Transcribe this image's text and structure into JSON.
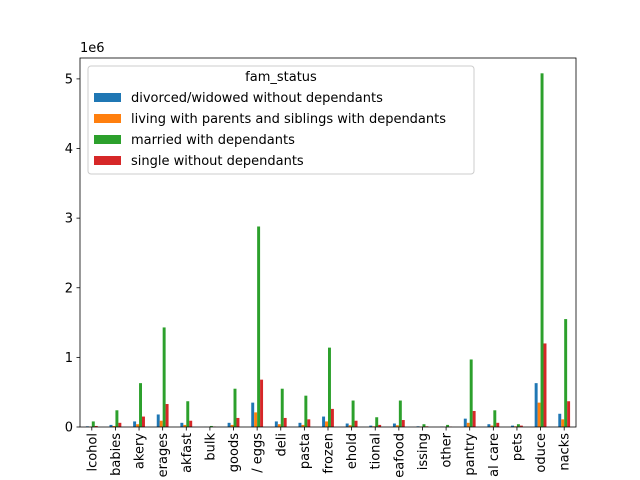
{
  "chart_data": {
    "type": "bar",
    "scale_label": "1e6",
    "ylim": [
      0,
      5300000
    ],
    "yticks": [
      0,
      1,
      2,
      3,
      4,
      5
    ],
    "categories": [
      "alcohol",
      "babies",
      "bakery",
      "beverages",
      "breakfast",
      "bulk",
      "canned goods",
      "dairy eggs",
      "deli",
      "dry goods pasta",
      "frozen",
      "household",
      "international",
      "meat seafood",
      "missing",
      "other",
      "pantry",
      "personal care",
      "pets",
      "produce",
      "snacks"
    ],
    "category_labels": [
      "lcohol",
      "babies",
      "akery",
      "erages",
      "akfast",
      "bulk",
      "goods",
      "/ eggs",
      "deli",
      "pasta",
      "frozen",
      "ehold",
      "tional",
      "eafood",
      "issing",
      "other",
      "pantry",
      "al care",
      "pets",
      "oduce",
      "nacks"
    ],
    "legend": {
      "title": "fam_status",
      "placement": "upper-left"
    },
    "series": [
      {
        "name": "divorced/widowed without dependants",
        "color": "#1f77b4",
        "values": [
          10000,
          30000,
          80000,
          180000,
          60000,
          2000,
          60000,
          350000,
          80000,
          60000,
          150000,
          50000,
          20000,
          50000,
          10000,
          5000,
          120000,
          40000,
          20000,
          630000,
          190000
        ]
      },
      {
        "name": "living with parents and siblings with dependants",
        "color": "#ff7f0e",
        "values": [
          5000,
          15000,
          40000,
          90000,
          30000,
          1000,
          30000,
          210000,
          40000,
          30000,
          80000,
          25000,
          10000,
          25000,
          5000,
          2000,
          60000,
          20000,
          10000,
          350000,
          110000
        ]
      },
      {
        "name": "married with dependants",
        "color": "#2ca02c",
        "values": [
          80000,
          240000,
          630000,
          1430000,
          370000,
          15000,
          550000,
          2880000,
          550000,
          450000,
          1140000,
          380000,
          140000,
          380000,
          40000,
          30000,
          970000,
          240000,
          40000,
          5080000,
          1550000
        ]
      },
      {
        "name": "single without dependants",
        "color": "#d62728",
        "values": [
          15000,
          60000,
          150000,
          330000,
          90000,
          5000,
          130000,
          680000,
          130000,
          110000,
          260000,
          90000,
          30000,
          100000,
          10000,
          5000,
          230000,
          60000,
          20000,
          1200000,
          370000
        ]
      }
    ]
  }
}
